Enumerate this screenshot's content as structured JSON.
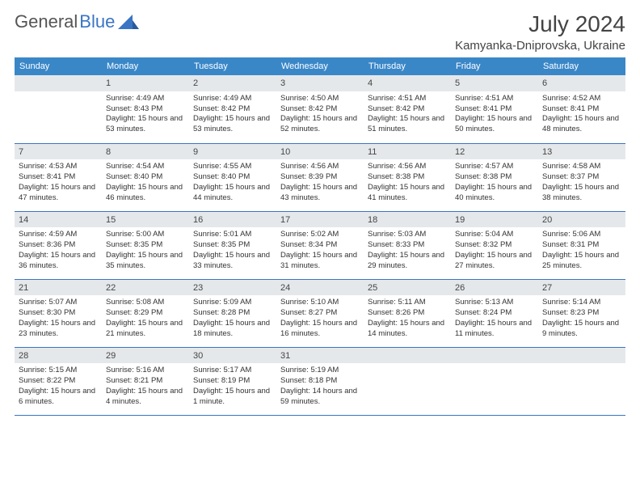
{
  "brand": {
    "name_part1": "General",
    "name_part2": "Blue"
  },
  "title": "July 2024",
  "location": "Kamyanka-Dniprovska, Ukraine",
  "day_headers": [
    "Sunday",
    "Monday",
    "Tuesday",
    "Wednesday",
    "Thursday",
    "Friday",
    "Saturday"
  ],
  "colors": {
    "header_bg": "#3a87c8",
    "accent": "#3a75c4",
    "daynum_bg": "#e5e8eb",
    "text": "#333333",
    "bg": "#ffffff"
  },
  "fonts": {
    "title_size": 28,
    "location_size": 15,
    "th_size": 11,
    "cell_size": 9.5
  },
  "weeks": [
    [
      {
        "day": "",
        "lines": []
      },
      {
        "day": "1",
        "lines": [
          "Sunrise: 4:49 AM",
          "Sunset: 8:43 PM",
          "Daylight: 15 hours and 53 minutes."
        ]
      },
      {
        "day": "2",
        "lines": [
          "Sunrise: 4:49 AM",
          "Sunset: 8:42 PM",
          "Daylight: 15 hours and 53 minutes."
        ]
      },
      {
        "day": "3",
        "lines": [
          "Sunrise: 4:50 AM",
          "Sunset: 8:42 PM",
          "Daylight: 15 hours and 52 minutes."
        ]
      },
      {
        "day": "4",
        "lines": [
          "Sunrise: 4:51 AM",
          "Sunset: 8:42 PM",
          "Daylight: 15 hours and 51 minutes."
        ]
      },
      {
        "day": "5",
        "lines": [
          "Sunrise: 4:51 AM",
          "Sunset: 8:41 PM",
          "Daylight: 15 hours and 50 minutes."
        ]
      },
      {
        "day": "6",
        "lines": [
          "Sunrise: 4:52 AM",
          "Sunset: 8:41 PM",
          "Daylight: 15 hours and 48 minutes."
        ]
      }
    ],
    [
      {
        "day": "7",
        "lines": [
          "Sunrise: 4:53 AM",
          "Sunset: 8:41 PM",
          "Daylight: 15 hours and 47 minutes."
        ]
      },
      {
        "day": "8",
        "lines": [
          "Sunrise: 4:54 AM",
          "Sunset: 8:40 PM",
          "Daylight: 15 hours and 46 minutes."
        ]
      },
      {
        "day": "9",
        "lines": [
          "Sunrise: 4:55 AM",
          "Sunset: 8:40 PM",
          "Daylight: 15 hours and 44 minutes."
        ]
      },
      {
        "day": "10",
        "lines": [
          "Sunrise: 4:56 AM",
          "Sunset: 8:39 PM",
          "Daylight: 15 hours and 43 minutes."
        ]
      },
      {
        "day": "11",
        "lines": [
          "Sunrise: 4:56 AM",
          "Sunset: 8:38 PM",
          "Daylight: 15 hours and 41 minutes."
        ]
      },
      {
        "day": "12",
        "lines": [
          "Sunrise: 4:57 AM",
          "Sunset: 8:38 PM",
          "Daylight: 15 hours and 40 minutes."
        ]
      },
      {
        "day": "13",
        "lines": [
          "Sunrise: 4:58 AM",
          "Sunset: 8:37 PM",
          "Daylight: 15 hours and 38 minutes."
        ]
      }
    ],
    [
      {
        "day": "14",
        "lines": [
          "Sunrise: 4:59 AM",
          "Sunset: 8:36 PM",
          "Daylight: 15 hours and 36 minutes."
        ]
      },
      {
        "day": "15",
        "lines": [
          "Sunrise: 5:00 AM",
          "Sunset: 8:35 PM",
          "Daylight: 15 hours and 35 minutes."
        ]
      },
      {
        "day": "16",
        "lines": [
          "Sunrise: 5:01 AM",
          "Sunset: 8:35 PM",
          "Daylight: 15 hours and 33 minutes."
        ]
      },
      {
        "day": "17",
        "lines": [
          "Sunrise: 5:02 AM",
          "Sunset: 8:34 PM",
          "Daylight: 15 hours and 31 minutes."
        ]
      },
      {
        "day": "18",
        "lines": [
          "Sunrise: 5:03 AM",
          "Sunset: 8:33 PM",
          "Daylight: 15 hours and 29 minutes."
        ]
      },
      {
        "day": "19",
        "lines": [
          "Sunrise: 5:04 AM",
          "Sunset: 8:32 PM",
          "Daylight: 15 hours and 27 minutes."
        ]
      },
      {
        "day": "20",
        "lines": [
          "Sunrise: 5:06 AM",
          "Sunset: 8:31 PM",
          "Daylight: 15 hours and 25 minutes."
        ]
      }
    ],
    [
      {
        "day": "21",
        "lines": [
          "Sunrise: 5:07 AM",
          "Sunset: 8:30 PM",
          "Daylight: 15 hours and 23 minutes."
        ]
      },
      {
        "day": "22",
        "lines": [
          "Sunrise: 5:08 AM",
          "Sunset: 8:29 PM",
          "Daylight: 15 hours and 21 minutes."
        ]
      },
      {
        "day": "23",
        "lines": [
          "Sunrise: 5:09 AM",
          "Sunset: 8:28 PM",
          "Daylight: 15 hours and 18 minutes."
        ]
      },
      {
        "day": "24",
        "lines": [
          "Sunrise: 5:10 AM",
          "Sunset: 8:27 PM",
          "Daylight: 15 hours and 16 minutes."
        ]
      },
      {
        "day": "25",
        "lines": [
          "Sunrise: 5:11 AM",
          "Sunset: 8:26 PM",
          "Daylight: 15 hours and 14 minutes."
        ]
      },
      {
        "day": "26",
        "lines": [
          "Sunrise: 5:13 AM",
          "Sunset: 8:24 PM",
          "Daylight: 15 hours and 11 minutes."
        ]
      },
      {
        "day": "27",
        "lines": [
          "Sunrise: 5:14 AM",
          "Sunset: 8:23 PM",
          "Daylight: 15 hours and 9 minutes."
        ]
      }
    ],
    [
      {
        "day": "28",
        "lines": [
          "Sunrise: 5:15 AM",
          "Sunset: 8:22 PM",
          "Daylight: 15 hours and 6 minutes."
        ]
      },
      {
        "day": "29",
        "lines": [
          "Sunrise: 5:16 AM",
          "Sunset: 8:21 PM",
          "Daylight: 15 hours and 4 minutes."
        ]
      },
      {
        "day": "30",
        "lines": [
          "Sunrise: 5:17 AM",
          "Sunset: 8:19 PM",
          "Daylight: 15 hours and 1 minute."
        ]
      },
      {
        "day": "31",
        "lines": [
          "Sunrise: 5:19 AM",
          "Sunset: 8:18 PM",
          "Daylight: 14 hours and 59 minutes."
        ]
      },
      {
        "day": "",
        "lines": []
      },
      {
        "day": "",
        "lines": []
      },
      {
        "day": "",
        "lines": []
      }
    ]
  ]
}
